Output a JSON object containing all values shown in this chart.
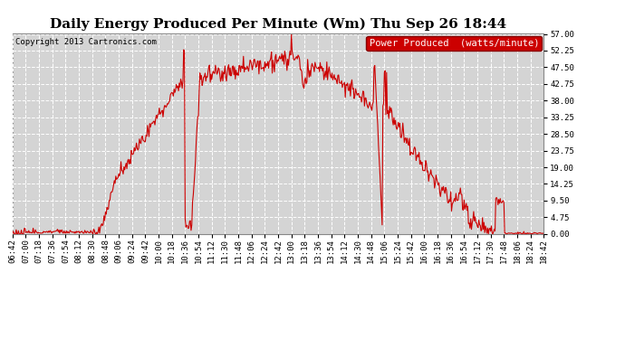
{
  "title": "Daily Energy Produced Per Minute (Wm) Thu Sep 26 18:44",
  "copyright": "Copyright 2013 Cartronics.com",
  "legend_label": "Power Produced  (watts/minute)",
  "legend_bg": "#cc0000",
  "legend_fg": "#ffffff",
  "line_color": "#cc0000",
  "bg_color": "#ffffff",
  "plot_bg_color": "#d4d4d4",
  "grid_color": "#ffffff",
  "ylim": [
    0,
    57.0
  ],
  "yticks": [
    0.0,
    4.75,
    9.5,
    14.25,
    19.0,
    23.75,
    28.5,
    33.25,
    38.0,
    42.75,
    47.5,
    52.25,
    57.0
  ],
  "ytick_labels": [
    "0.00",
    "4.75",
    "9.50",
    "14.25",
    "19.00",
    "23.75",
    "28.50",
    "33.25",
    "38.00",
    "42.75",
    "47.50",
    "52.25",
    "57.00"
  ],
  "title_fontsize": 11,
  "copyright_fontsize": 6.5,
  "tick_fontsize": 6.5,
  "legend_fontsize": 7.5
}
